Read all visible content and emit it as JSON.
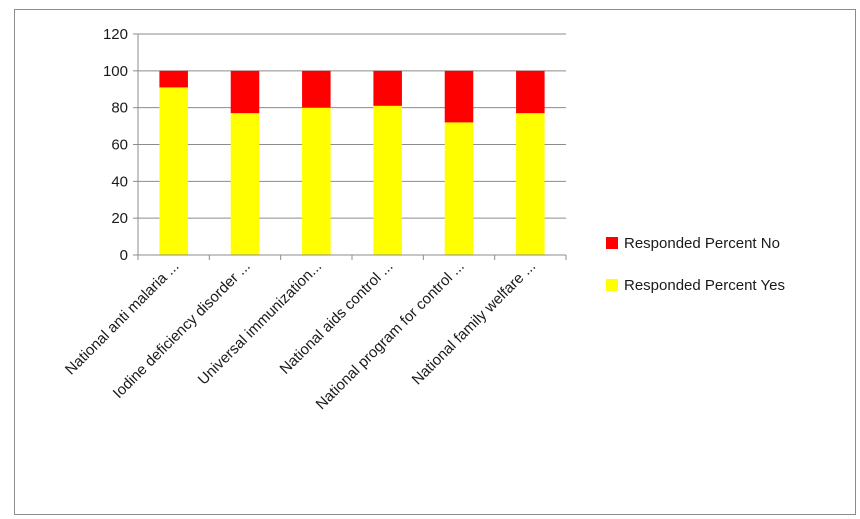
{
  "chart_data": {
    "type": "bar",
    "stacked": true,
    "categories": [
      "National anti malaria ...",
      "Iodine deficiency disorder ...",
      "Universal immunization...",
      "National aids control ...",
      "National program for control ...",
      "National family welfare ..."
    ],
    "series": [
      {
        "name": "Responded Percent Yes",
        "color": "#ffff00",
        "values": [
          91,
          77,
          80,
          81,
          72,
          77
        ]
      },
      {
        "name": "Responded Percent No",
        "color": "#ff0000",
        "values": [
          9,
          23,
          20,
          19,
          28,
          23
        ]
      }
    ],
    "ylim": [
      0,
      120
    ],
    "yticks": [
      0,
      20,
      40,
      60,
      80,
      100,
      120
    ],
    "grid": true,
    "legend": "right",
    "legend_order": [
      "Responded Percent No",
      "Responded Percent Yes"
    ],
    "title": "",
    "xlabel": "",
    "ylabel": ""
  }
}
